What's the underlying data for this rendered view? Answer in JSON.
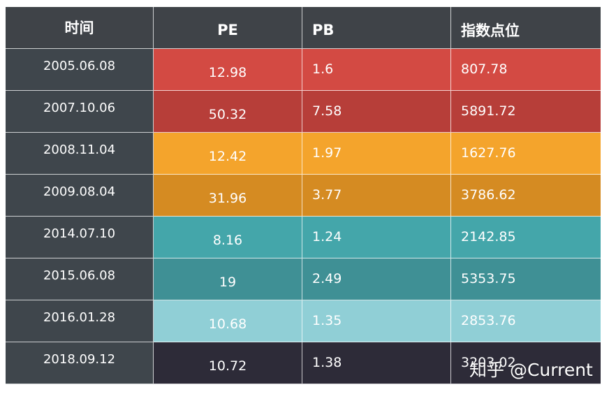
{
  "table": {
    "headers": [
      "时间",
      "PE",
      "PB",
      "指数点位"
    ],
    "rows": [
      {
        "time": "2005.06.08",
        "pe": "12.98",
        "pb": "1.6",
        "index": "807.78",
        "color": "#d34a43"
      },
      {
        "time": "2007.10.06",
        "pe": "50.32",
        "pb": "7.58",
        "index": "5891.72",
        "color": "#b73e39"
      },
      {
        "time": "2008.11.04",
        "pe": "12.42",
        "pb": "1.97",
        "index": "1627.76",
        "color": "#f4a42c"
      },
      {
        "time": "2009.08.04",
        "pe": "31.96",
        "pb": "3.77",
        "index": "3786.62",
        "color": "#d58b22"
      },
      {
        "time": "2014.07.10",
        "pe": "8.16",
        "pb": "1.24",
        "index": "2142.85",
        "color": "#44a6aa"
      },
      {
        "time": "2015.06.08",
        "pe": "19",
        "pb": "2.49",
        "index": "5353.75",
        "color": "#3f9095"
      },
      {
        "time": "2016.01.28",
        "pe": "10.68",
        "pb": "1.35",
        "index": "2853.76",
        "color": "#90cfd6"
      },
      {
        "time": "2018.09.12",
        "pe": "10.72",
        "pb": "1.38",
        "index": "3203.02",
        "color": "#2d2b38"
      }
    ]
  },
  "watermark": "知乎 @Current"
}
